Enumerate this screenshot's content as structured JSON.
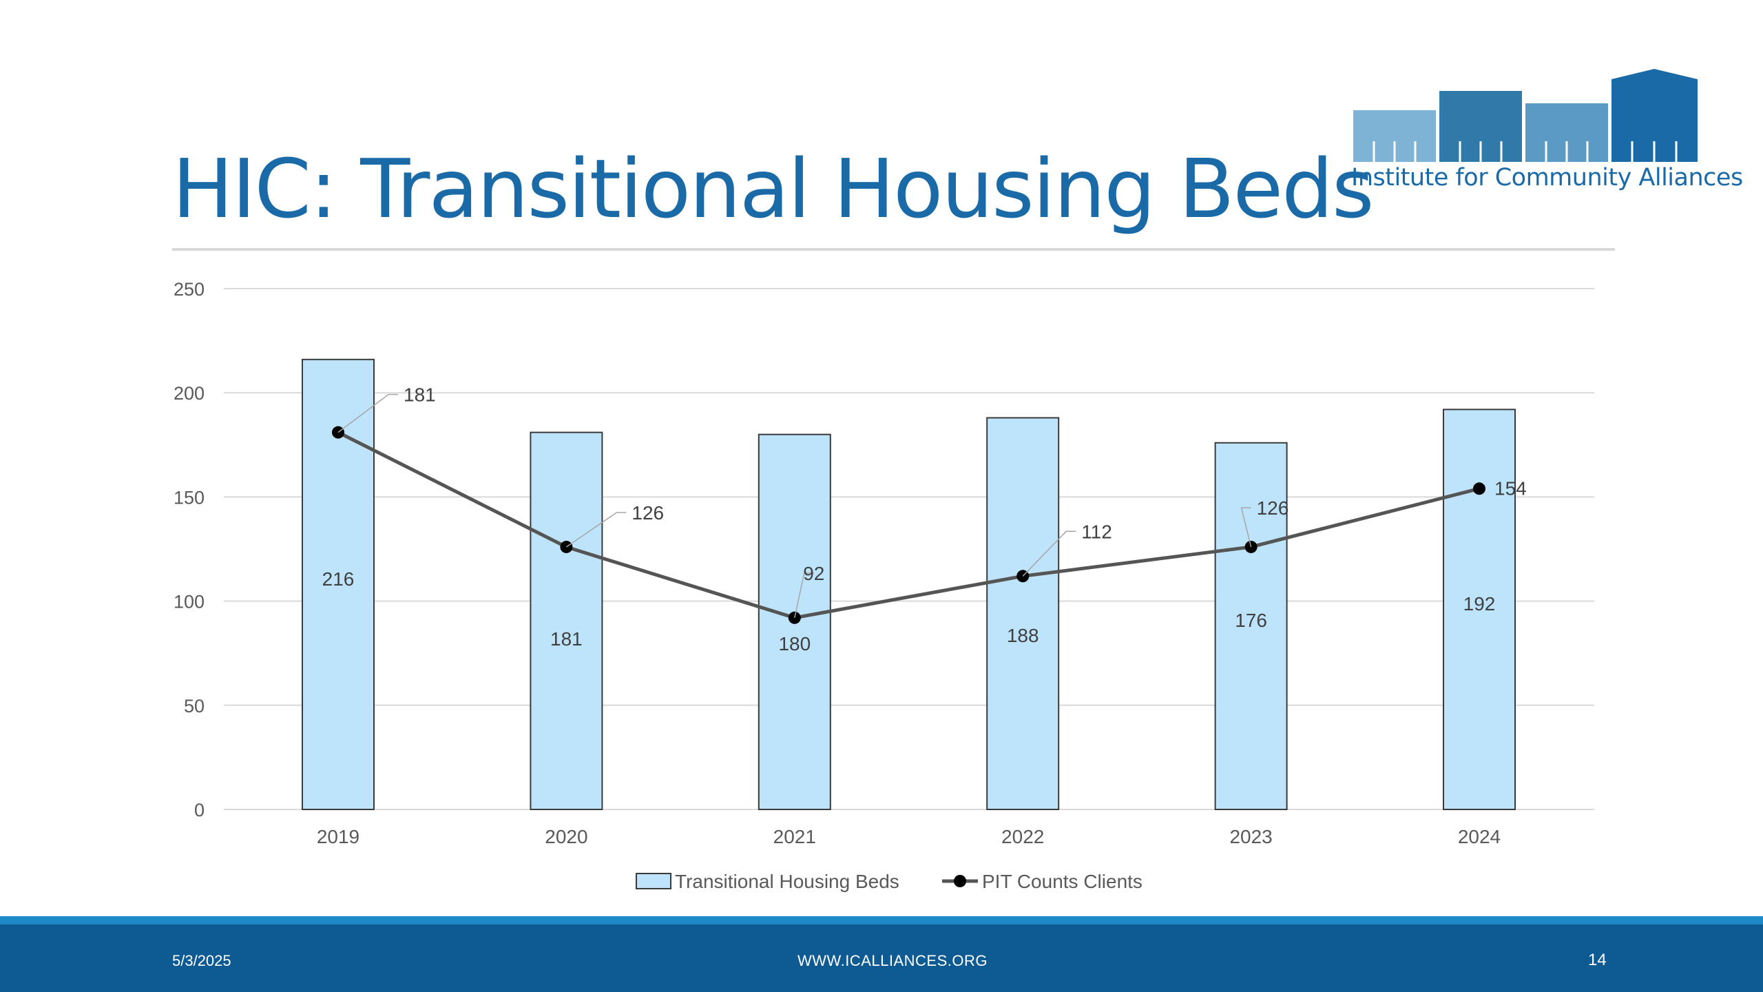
{
  "slide": {
    "title": "HIC: Transitional Housing Beds",
    "logo_text": "Institute for Community Alliances",
    "footer": {
      "date": "5/3/2025",
      "url": "WWW.ICALLIANCES.ORG",
      "page": "14"
    }
  },
  "colors": {
    "bar_fill": "#bde4fb",
    "bar_stroke": "#3a3a3a",
    "line": "#555555",
    "accent": "#1a6aa8",
    "footer": "#0e5b94"
  },
  "chart_data": {
    "type": "bar",
    "categories": [
      "2019",
      "2020",
      "2021",
      "2022",
      "2023",
      "2024"
    ],
    "series": [
      {
        "name": "Transitional Housing Beds",
        "type": "bar",
        "values": [
          216,
          181,
          180,
          188,
          176,
          192
        ]
      },
      {
        "name": "PIT Counts Clients",
        "type": "line",
        "values": [
          181,
          126,
          92,
          112,
          126,
          154
        ]
      }
    ],
    "ylim": [
      0,
      250
    ],
    "yticks": [
      0,
      50,
      100,
      150,
      200,
      250
    ],
    "grid": true,
    "legend": "bottom"
  }
}
